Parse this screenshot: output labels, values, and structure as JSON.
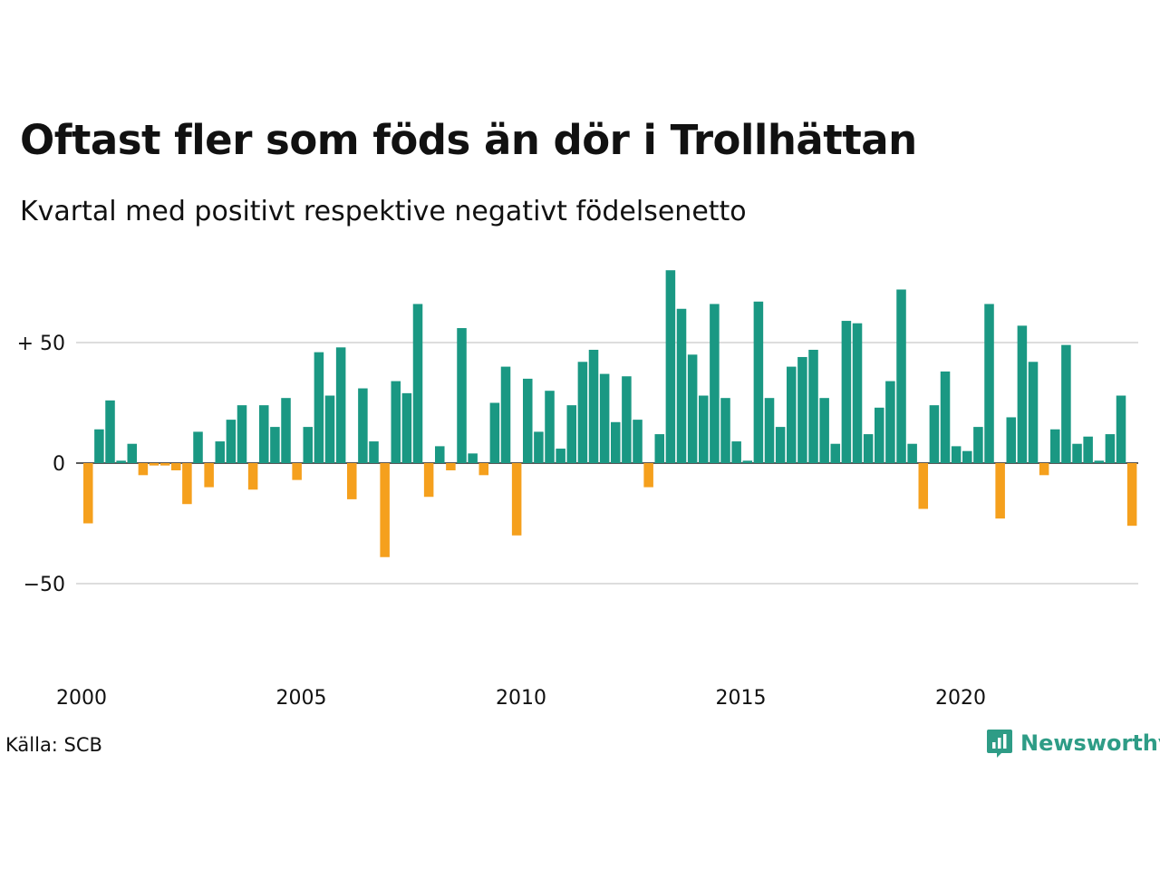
{
  "header": {
    "title": "Oftast fler som föds än dör i Trollhättan",
    "subtitle": "Kvartal med positivt respektive negativt födelsenetto"
  },
  "footer": {
    "source": "Källa: SCB",
    "brand": "Newsworthy"
  },
  "colors": {
    "positive": "#1a9883",
    "negative": "#f5a01d",
    "grid": "#dddddd",
    "brand": "#2e9c86"
  },
  "chart_data": {
    "type": "bar",
    "x_start_year": 2000,
    "values": [
      -25,
      14,
      26,
      1,
      8,
      -5,
      -1,
      -1,
      -3,
      -17,
      13,
      -10,
      9,
      18,
      24,
      -11,
      24,
      15,
      27,
      -7,
      15,
      46,
      28,
      48,
      -15,
      31,
      9,
      -39,
      34,
      29,
      66,
      -14,
      7,
      -3,
      56,
      4,
      -5,
      25,
      40,
      -30,
      35,
      13,
      30,
      6,
      24,
      42,
      47,
      37,
      17,
      36,
      18,
      -10,
      12,
      80,
      64,
      45,
      28,
      66,
      27,
      9,
      1,
      67,
      27,
      15,
      40,
      44,
      47,
      27,
      8,
      59,
      58,
      12,
      23,
      34,
      72,
      8,
      -19,
      24,
      38,
      7,
      5,
      15,
      66,
      -23,
      19,
      57,
      42,
      -5,
      14,
      49,
      8,
      11,
      1,
      12,
      28,
      -26
    ],
    "y_ticks": [
      50,
      0,
      -50
    ],
    "y_tick_labels": [
      "+ 50",
      "0",
      "−50"
    ],
    "x_tick_labels": [
      "2000",
      "2005",
      "2010",
      "2015",
      "2020"
    ],
    "ylim": [
      -50,
      80
    ],
    "grid": true
  }
}
